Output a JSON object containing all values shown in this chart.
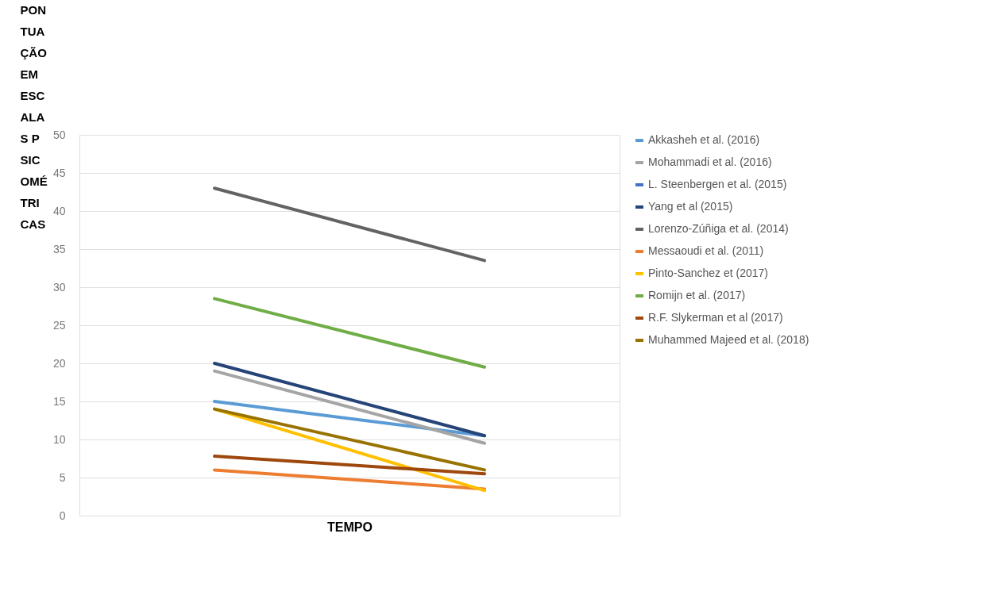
{
  "chart_data": {
    "type": "line",
    "xlabel": "TEMPO",
    "ylabel": "PONTUAÇÃO EM ESCALAS PSICOMÉTRICAS",
    "categories": [
      null,
      null
    ],
    "series": [
      {
        "name": "Akkasheh et al. (2016)",
        "color": "#5b9bd5",
        "values": [
          15,
          10.5
        ]
      },
      {
        "name": "Mohammadi et al. (2016)",
        "color": "#a5a5a5",
        "values": [
          19,
          9.5
        ]
      },
      {
        "name": "L. Steenbergen et al. (2015)",
        "color": "#4472c4",
        "values": [
          null,
          null
        ]
      },
      {
        "name": "Yang et al (2015)",
        "color": "#264478",
        "values": [
          20,
          10.5
        ]
      },
      {
        "name": "Lorenzo-Zúñiga et al. (2014)",
        "color": "#636363",
        "values": [
          43,
          33.5
        ]
      },
      {
        "name": "Messaoudi et al. (2011)",
        "color": "#ed7d31",
        "values": [
          6,
          3.5
        ]
      },
      {
        "name": "Pinto-Sanchez et (2017)",
        "color": "#ffc000",
        "values": [
          14,
          3.3
        ]
      },
      {
        "name": "Romijn et al. (2017)",
        "color": "#70ad47",
        "values": [
          28.5,
          19.5
        ]
      },
      {
        "name": "R.F. Slykerman et al (2017)",
        "color": "#9e480e",
        "values": [
          7.8,
          5.5
        ]
      },
      {
        "name": "Muhammed Majeed et al. (2018)",
        "color": "#997300",
        "values": [
          14,
          6
        ]
      }
    ],
    "ylim": [
      0,
      50
    ],
    "yticks": [
      0,
      5,
      10,
      15,
      20,
      25,
      30,
      35,
      40,
      45,
      50
    ],
    "grid": "y",
    "legend": "right",
    "marker": "none",
    "line_style": "solid"
  }
}
